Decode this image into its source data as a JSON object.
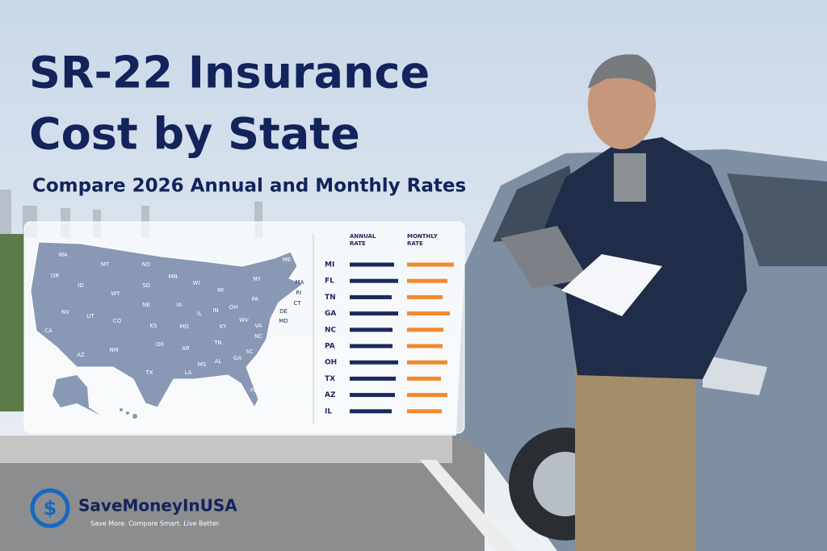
{
  "header": {
    "title_line1": "SR-22 Insurance",
    "title_line2": "Cost by State",
    "subtitle": "Compare 2026 Annual and Monthly Rates"
  },
  "map": {
    "states": [
      "WA",
      "OR",
      "MT",
      "ID",
      "ND",
      "SD",
      "MN",
      "WI",
      "MI",
      "NY",
      "ME",
      "MA",
      "RI",
      "CT",
      "WY",
      "NE",
      "IA",
      "IL",
      "IN",
      "OH",
      "PA",
      "NV",
      "UT",
      "CO",
      "KS",
      "MO",
      "KY",
      "WV",
      "VA",
      "DE",
      "MD",
      "CA",
      "AZ",
      "NM",
      "OK",
      "AR",
      "TN",
      "NC",
      "SC",
      "TX",
      "LA",
      "MS",
      "AL",
      "GA",
      "FL"
    ]
  },
  "chart_data": {
    "type": "bar",
    "orientation": "horizontal",
    "categories": [
      "MI",
      "FL",
      "TN",
      "GA",
      "NC",
      "PA",
      "OH",
      "TX",
      "AZ",
      "IL"
    ],
    "series": [
      {
        "name": "ANNUAL RATE",
        "color": "#1b2a5e",
        "values": [
          55,
          60,
          52,
          60,
          53,
          53,
          60,
          57,
          56,
          52
        ]
      },
      {
        "name": "MONTHLY RATE",
        "color": "#f08a2c",
        "values": [
          58,
          50,
          44,
          53,
          45,
          44,
          50,
          42,
          50,
          43
        ]
      }
    ]
  },
  "logo": {
    "icon": "$",
    "name": "SaveMoneyInUSA",
    "tagline": "Save More. Compare Smart. Live Better."
  }
}
